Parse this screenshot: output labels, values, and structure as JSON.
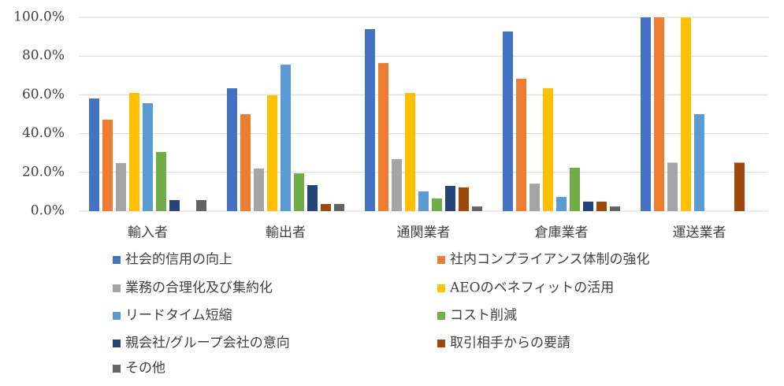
{
  "chart_data": {
    "type": "bar",
    "categories": [
      "輸入者",
      "輸出者",
      "通関業者",
      "倉庫業者",
      "運送業者"
    ],
    "series": [
      {
        "name": "社会的信用の向上",
        "color": "#4472c4",
        "values": [
          58.1,
          63.4,
          93.9,
          92.7,
          100
        ]
      },
      {
        "name": "社内コンプライアンス体制の強化",
        "color": "#ed7d31",
        "values": [
          47.2,
          50,
          76.4,
          68.3,
          100
        ]
      },
      {
        "name": "業務の合理化及び集約化",
        "color": "#a5a5a5",
        "values": [
          24.8,
          22,
          26.8,
          14.2,
          25
        ]
      },
      {
        "name": "AEOのベネフィットの活用",
        "color": "#ffc000",
        "values": [
          61,
          59.8,
          61,
          63.4,
          100
        ]
      },
      {
        "name": "リードタイム短縮",
        "color": "#5b9bd5",
        "values": [
          55.7,
          75.6,
          10.2,
          7.3,
          50
        ]
      },
      {
        "name": "コスト削減",
        "color": "#70ad47",
        "values": [
          30.5,
          19.5,
          6.5,
          22.4,
          0
        ]
      },
      {
        "name": "親会社/グループ会社の意向",
        "color": "#264478",
        "values": [
          5.7,
          13.4,
          13,
          4.9,
          0
        ]
      },
      {
        "name": "取引相手からの要請",
        "color": "#9e480e",
        "values": [
          0,
          3.7,
          12.2,
          4.9,
          25
        ]
      },
      {
        "name": "その他",
        "color": "#636363",
        "values": [
          5.7,
          3.7,
          2.4,
          2.4,
          0
        ]
      }
    ],
    "ylim": [
      0,
      100
    ],
    "yticks": [
      {
        "value": 0,
        "label": "0.0%"
      },
      {
        "value": 20,
        "label": "20.0%"
      },
      {
        "value": 40,
        "label": "40.0%"
      },
      {
        "value": 60,
        "label": "60.0%"
      },
      {
        "value": 80,
        "label": "80.0%"
      },
      {
        "value": 100,
        "label": "100.0%"
      }
    ],
    "grid": true,
    "legend": "bottom"
  }
}
